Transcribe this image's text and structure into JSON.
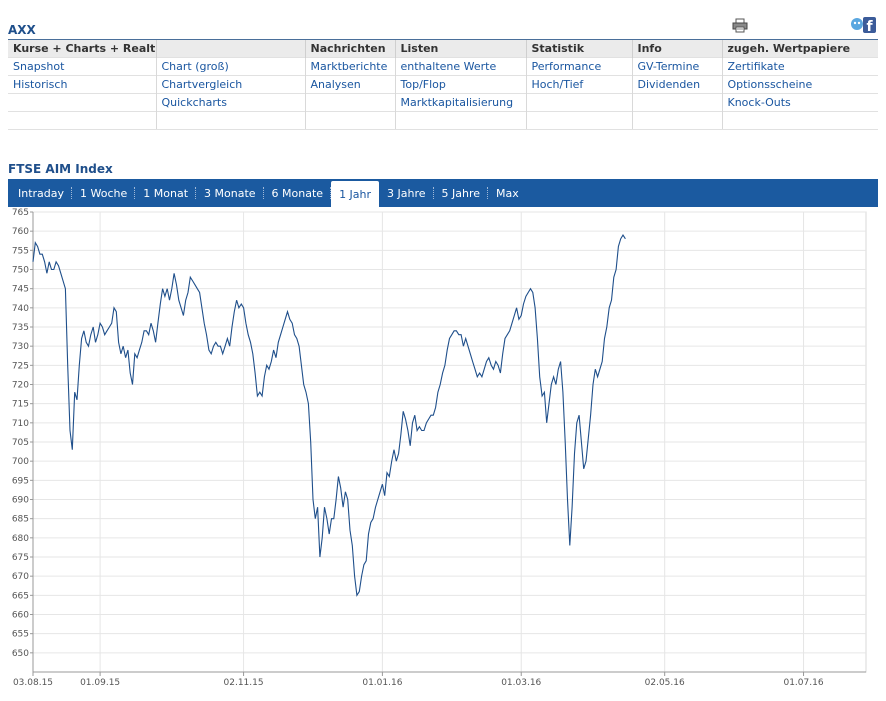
{
  "header": {
    "symbol": "AXX"
  },
  "icons": {
    "print": "printer-icon",
    "social": "facebook-icon"
  },
  "nav": {
    "headers": [
      "Kurse + Charts + Realtime",
      "",
      "Nachrichten",
      "Listen",
      "Statistik",
      "Info",
      "zugeh. Wertpapiere"
    ],
    "rows": [
      [
        "Snapshot",
        "Chart (groß)",
        "Marktberichte",
        "enthaltene Werte",
        "Performance",
        "GV-Termine",
        "Zertifikate"
      ],
      [
        "Historisch",
        "Chartvergleich",
        "Analysen",
        "Top/Flop",
        "Hoch/Tief",
        "Dividenden",
        "Optionsscheine"
      ],
      [
        "",
        "Quickcharts",
        "",
        "Marktkapitalisierung",
        "",
        "",
        "Knock-Outs"
      ],
      [
        "",
        "",
        "",
        "",
        "",
        "",
        ""
      ]
    ]
  },
  "chart_title": "FTSE AIM Index",
  "tabs": [
    {
      "label": "Intraday",
      "active": false
    },
    {
      "label": "1 Woche",
      "active": false
    },
    {
      "label": "1 Monat",
      "active": false
    },
    {
      "label": "3 Monate",
      "active": false
    },
    {
      "label": "6 Monate",
      "active": false
    },
    {
      "label": "1 Jahr",
      "active": true
    },
    {
      "label": "3 Jahre",
      "active": false
    },
    {
      "label": "5 Jahre",
      "active": false
    },
    {
      "label": "Max",
      "active": false
    }
  ],
  "colors": {
    "accent": "#1b5aa0",
    "line": "#1f4f8b"
  },
  "chart_data": {
    "type": "line",
    "title": "",
    "xlabel": "",
    "ylabel": "",
    "ylim": [
      645,
      765
    ],
    "yticks": [
      650,
      655,
      660,
      665,
      670,
      675,
      680,
      685,
      690,
      695,
      700,
      705,
      710,
      715,
      720,
      725,
      730,
      735,
      740,
      745,
      750,
      755,
      760,
      765
    ],
    "xlim": [
      0,
      360
    ],
    "xticks": [
      {
        "x": 0,
        "label": "03.08.15"
      },
      {
        "x": 29,
        "label": "01.09.15"
      },
      {
        "x": 91,
        "label": "02.11.15"
      },
      {
        "x": 151,
        "label": "01.01.16"
      },
      {
        "x": 211,
        "label": "01.03.16"
      },
      {
        "x": 273,
        "label": "02.05.16"
      },
      {
        "x": 333,
        "label": "01.07.16"
      }
    ],
    "grid": true,
    "series": [
      {
        "name": "",
        "points": [
          [
            0,
            752
          ],
          [
            1,
            757
          ],
          [
            2,
            756
          ],
          [
            3,
            754
          ],
          [
            4,
            754
          ],
          [
            5,
            752
          ],
          [
            6,
            749
          ],
          [
            7,
            752
          ],
          [
            8,
            750
          ],
          [
            9,
            750
          ],
          [
            10,
            752
          ],
          [
            11,
            751
          ],
          [
            12,
            749
          ],
          [
            13,
            747
          ],
          [
            14,
            745
          ],
          [
            15,
            725
          ],
          [
            16,
            708
          ],
          [
            17,
            703
          ],
          [
            18,
            718
          ],
          [
            19,
            716
          ],
          [
            20,
            725
          ],
          [
            21,
            732
          ],
          [
            22,
            734
          ],
          [
            23,
            731
          ],
          [
            24,
            730
          ],
          [
            25,
            733
          ],
          [
            26,
            735
          ],
          [
            27,
            731
          ],
          [
            28,
            733
          ],
          [
            29,
            736
          ],
          [
            30,
            735
          ],
          [
            31,
            733
          ],
          [
            32,
            734
          ],
          [
            33,
            735
          ],
          [
            34,
            736
          ],
          [
            35,
            740
          ],
          [
            36,
            739
          ],
          [
            37,
            731
          ],
          [
            38,
            728
          ],
          [
            39,
            730
          ],
          [
            40,
            727
          ],
          [
            41,
            729
          ],
          [
            42,
            723
          ],
          [
            43,
            720
          ],
          [
            44,
            728
          ],
          [
            45,
            727
          ],
          [
            46,
            729
          ],
          [
            47,
            731
          ],
          [
            48,
            734
          ],
          [
            49,
            734
          ],
          [
            50,
            733
          ],
          [
            51,
            736
          ],
          [
            52,
            734
          ],
          [
            53,
            731
          ],
          [
            54,
            736
          ],
          [
            55,
            741
          ],
          [
            56,
            745
          ],
          [
            57,
            743
          ],
          [
            58,
            745
          ],
          [
            59,
            742
          ],
          [
            60,
            745
          ],
          [
            61,
            749
          ],
          [
            62,
            746
          ],
          [
            63,
            742
          ],
          [
            64,
            740
          ],
          [
            65,
            738
          ],
          [
            66,
            742
          ],
          [
            67,
            744
          ],
          [
            68,
            748
          ],
          [
            69,
            747
          ],
          [
            70,
            746
          ],
          [
            71,
            745
          ],
          [
            72,
            744
          ],
          [
            73,
            740
          ],
          [
            74,
            736
          ],
          [
            75,
            733
          ],
          [
            76,
            729
          ],
          [
            77,
            728
          ],
          [
            78,
            730
          ],
          [
            79,
            731
          ],
          [
            80,
            730
          ],
          [
            81,
            730
          ],
          [
            82,
            728
          ],
          [
            83,
            730
          ],
          [
            84,
            732
          ],
          [
            85,
            730
          ],
          [
            86,
            735
          ],
          [
            87,
            739
          ],
          [
            88,
            742
          ],
          [
            89,
            740
          ],
          [
            90,
            741
          ],
          [
            91,
            740
          ],
          [
            92,
            736
          ],
          [
            93,
            733
          ],
          [
            94,
            731
          ],
          [
            95,
            728
          ],
          [
            96,
            723
          ],
          [
            97,
            717
          ],
          [
            98,
            718
          ],
          [
            99,
            717
          ],
          [
            100,
            722
          ],
          [
            101,
            725
          ],
          [
            102,
            724
          ],
          [
            103,
            726
          ],
          [
            104,
            729
          ],
          [
            105,
            727
          ],
          [
            106,
            731
          ],
          [
            107,
            733
          ],
          [
            108,
            735
          ],
          [
            109,
            737
          ],
          [
            110,
            739
          ],
          [
            111,
            737
          ],
          [
            112,
            736
          ],
          [
            113,
            733
          ],
          [
            114,
            732
          ],
          [
            115,
            730
          ],
          [
            116,
            725
          ],
          [
            117,
            720
          ],
          [
            118,
            718
          ],
          [
            119,
            715
          ],
          [
            120,
            705
          ],
          [
            121,
            690
          ],
          [
            122,
            685
          ],
          [
            123,
            688
          ],
          [
            124,
            675
          ],
          [
            125,
            680
          ],
          [
            126,
            688
          ],
          [
            127,
            685
          ],
          [
            128,
            681
          ],
          [
            129,
            685
          ],
          [
            130,
            685
          ],
          [
            131,
            690
          ],
          [
            132,
            696
          ],
          [
            133,
            693
          ],
          [
            134,
            688
          ],
          [
            135,
            692
          ],
          [
            136,
            690
          ],
          [
            137,
            682
          ],
          [
            138,
            678
          ],
          [
            139,
            670
          ],
          [
            140,
            665
          ],
          [
            141,
            666
          ],
          [
            142,
            670
          ],
          [
            143,
            673
          ],
          [
            144,
            674
          ],
          [
            145,
            681
          ],
          [
            146,
            684
          ],
          [
            147,
            685
          ],
          [
            148,
            688
          ],
          [
            149,
            690
          ],
          [
            150,
            692
          ],
          [
            151,
            694
          ],
          [
            152,
            691
          ],
          [
            153,
            697
          ],
          [
            154,
            696
          ],
          [
            155,
            700
          ],
          [
            156,
            703
          ],
          [
            157,
            700
          ],
          [
            158,
            702
          ],
          [
            159,
            707
          ],
          [
            160,
            713
          ],
          [
            161,
            711
          ],
          [
            162,
            708
          ],
          [
            163,
            704
          ],
          [
            164,
            710
          ],
          [
            165,
            712
          ],
          [
            166,
            708
          ],
          [
            167,
            709
          ],
          [
            168,
            708
          ],
          [
            169,
            708
          ],
          [
            170,
            710
          ],
          [
            171,
            711
          ],
          [
            172,
            712
          ],
          [
            173,
            712
          ],
          [
            174,
            714
          ],
          [
            175,
            718
          ],
          [
            176,
            720
          ],
          [
            177,
            723
          ],
          [
            178,
            725
          ],
          [
            179,
            729
          ],
          [
            180,
            732
          ],
          [
            181,
            733
          ],
          [
            182,
            734
          ],
          [
            183,
            734
          ],
          [
            184,
            733
          ],
          [
            185,
            733
          ],
          [
            186,
            730
          ],
          [
            187,
            732
          ],
          [
            188,
            730
          ],
          [
            189,
            728
          ],
          [
            190,
            726
          ],
          [
            191,
            724
          ],
          [
            192,
            722
          ],
          [
            193,
            723
          ],
          [
            194,
            722
          ],
          [
            195,
            724
          ],
          [
            196,
            726
          ],
          [
            197,
            727
          ],
          [
            198,
            725
          ],
          [
            199,
            724
          ],
          [
            200,
            726
          ],
          [
            201,
            725
          ],
          [
            202,
            723
          ],
          [
            203,
            728
          ],
          [
            204,
            732
          ],
          [
            205,
            733
          ],
          [
            206,
            734
          ],
          [
            207,
            736
          ],
          [
            208,
            738
          ],
          [
            209,
            740
          ],
          [
            210,
            737
          ],
          [
            211,
            738
          ],
          [
            212,
            741
          ],
          [
            213,
            743
          ],
          [
            214,
            744
          ],
          [
            215,
            745
          ],
          [
            216,
            744
          ],
          [
            217,
            740
          ],
          [
            218,
            732
          ],
          [
            219,
            722
          ],
          [
            220,
            717
          ],
          [
            221,
            718
          ],
          [
            222,
            710
          ],
          [
            223,
            715
          ],
          [
            224,
            720
          ],
          [
            225,
            722
          ],
          [
            226,
            720
          ],
          [
            227,
            724
          ],
          [
            228,
            726
          ],
          [
            229,
            718
          ],
          [
            230,
            705
          ],
          [
            231,
            690
          ],
          [
            232,
            678
          ],
          [
            233,
            688
          ],
          [
            234,
            702
          ],
          [
            235,
            710
          ],
          [
            236,
            712
          ],
          [
            237,
            705
          ],
          [
            238,
            698
          ],
          [
            239,
            700
          ],
          [
            240,
            706
          ],
          [
            241,
            712
          ],
          [
            242,
            720
          ],
          [
            243,
            724
          ],
          [
            244,
            722
          ],
          [
            245,
            724
          ],
          [
            246,
            726
          ],
          [
            247,
            732
          ],
          [
            248,
            735
          ],
          [
            249,
            740
          ],
          [
            250,
            742
          ],
          [
            251,
            748
          ],
          [
            252,
            750
          ],
          [
            253,
            756
          ],
          [
            254,
            758
          ],
          [
            255,
            759
          ],
          [
            256,
            758
          ]
        ]
      }
    ]
  }
}
